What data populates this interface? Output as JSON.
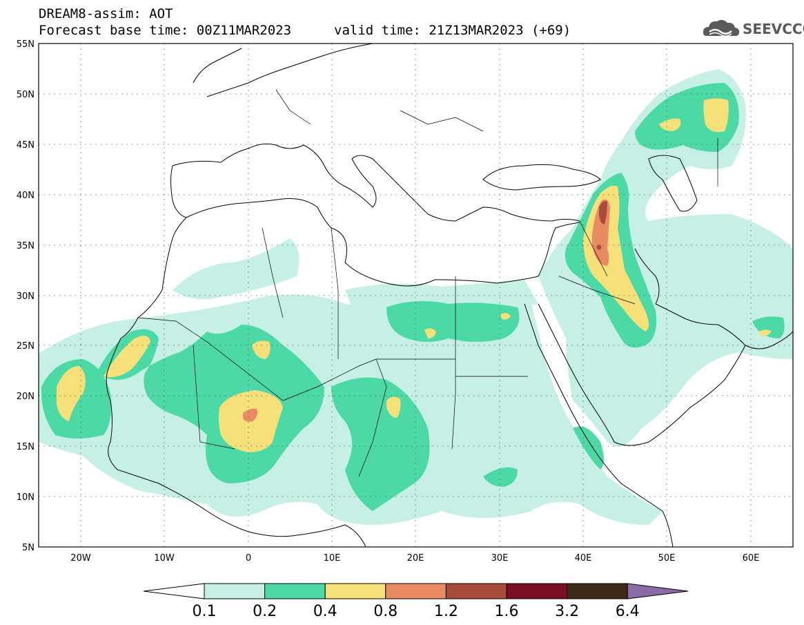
{
  "header": {
    "title": "DREAM8-assim: AOT",
    "base_time": "Forecast base time: 00Z11MAR2023",
    "valid_time": "valid time: 21Z13MAR2023 (+69)",
    "logo_text": "SEEVCCC"
  },
  "map": {
    "lat_labels": [
      "55N",
      "50N",
      "45N",
      "40N",
      "35N",
      "30N",
      "25N",
      "20N",
      "15N",
      "10N",
      "5N"
    ],
    "lon_labels": [
      "20W",
      "10W",
      "0",
      "10E",
      "20E",
      "30E",
      "40E",
      "50E",
      "60E"
    ]
  },
  "colorbar": {
    "labels": [
      "0.1",
      "0.2",
      "0.4",
      "0.8",
      "1.2",
      "1.6",
      "3.2",
      "6.4"
    ],
    "colors": [
      "#ffffff",
      "#c6f0e6",
      "#4dd9a6",
      "#f5e07a",
      "#e98a63",
      "#a84b3c",
      "#7a0e27",
      "#3e2a18",
      "#8d6aa6"
    ]
  },
  "palette": {
    "c1": "#c6f0e6",
    "c2": "#4dd9a6",
    "c3": "#f5e07a",
    "c4": "#e98a63",
    "c5": "#a84b3c"
  }
}
